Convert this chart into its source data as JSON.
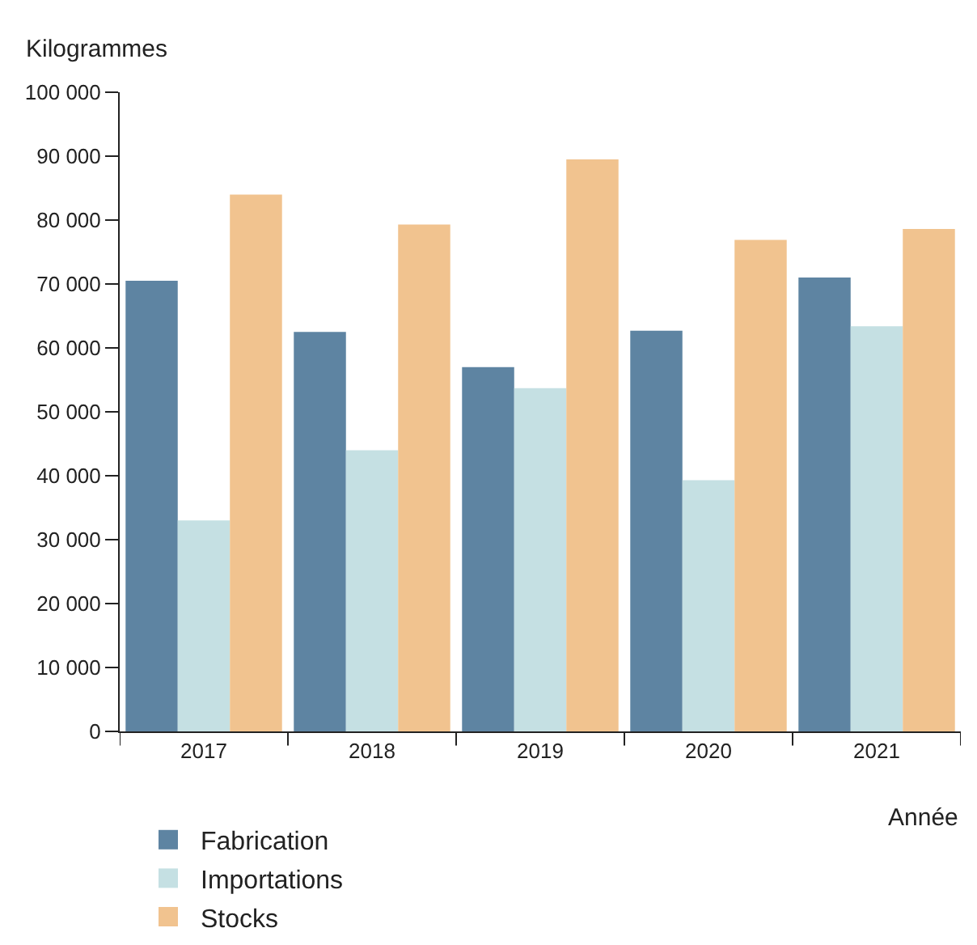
{
  "chart_data": {
    "type": "bar",
    "xlabel": "Année",
    "ylabel": "Kilogrammes",
    "categories": [
      "2017",
      "2018",
      "2019",
      "2020",
      "2021"
    ],
    "series": [
      {
        "name": "Fabrication",
        "color": "#5e84a2",
        "values": [
          70500,
          62500,
          57000,
          62700,
          71000
        ]
      },
      {
        "name": "Importations",
        "color": "#c5e0e3",
        "values": [
          33000,
          44000,
          53700,
          39300,
          63400
        ]
      },
      {
        "name": "Stocks",
        "color": "#f1c38f",
        "values": [
          84000,
          79300,
          89500,
          76900,
          78600
        ]
      }
    ],
    "ylim": [
      0,
      100000
    ],
    "yticks": [
      0,
      {
        "value": 10000,
        "label": "10 000"
      },
      {
        "value": 20000,
        "label": "20 000"
      },
      {
        "value": 30000,
        "label": "30 000"
      },
      {
        "value": 40000,
        "label": "40 000"
      },
      {
        "value": 50000,
        "label": "50 000"
      },
      {
        "value": 60000,
        "label": "60 000"
      },
      {
        "value": 70000,
        "label": "70 000"
      },
      {
        "value": 80000,
        "label": "80 000"
      },
      {
        "value": 90000,
        "label": "90 000"
      },
      {
        "value": 100000,
        "label": "100 000"
      }
    ],
    "grid": false,
    "legend": "bottom"
  }
}
